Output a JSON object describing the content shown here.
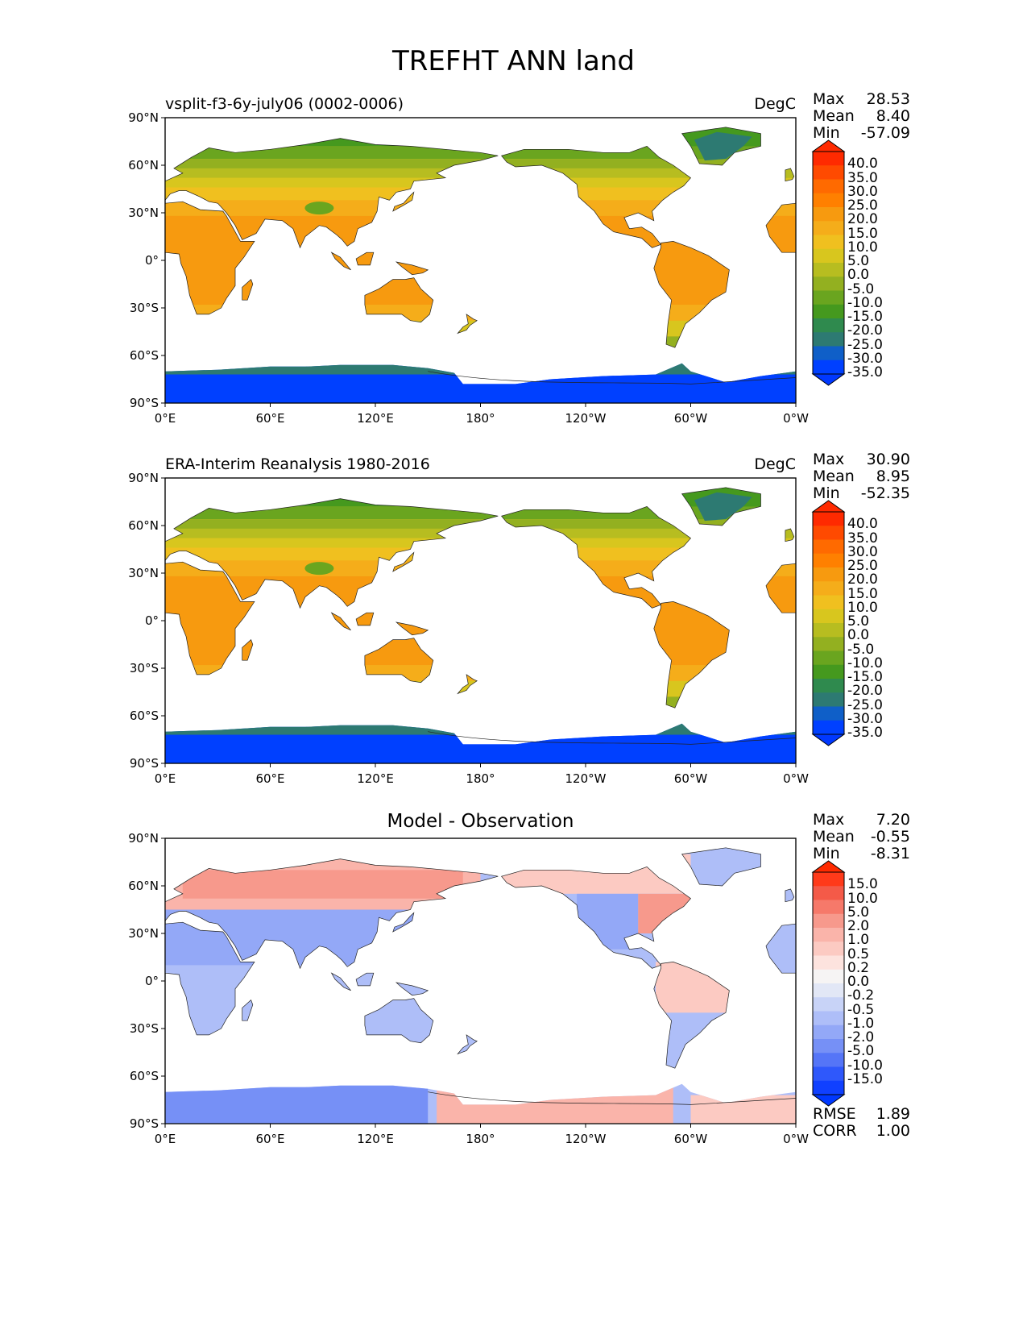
{
  "figure": {
    "title": "TREFHT ANN land"
  },
  "lat_ticks": [
    "90°N",
    "60°N",
    "30°N",
    "0°",
    "30°S",
    "60°S",
    "90°S"
  ],
  "lon_ticks": [
    "0°E",
    "60°E",
    "120°E",
    "180°",
    "120°W",
    "60°W",
    "0°W"
  ],
  "panels": [
    {
      "id": "test",
      "title": "vsplit-f3-6y-july06 (0002-0006)",
      "title_align": "left",
      "units": "DegC",
      "stats": {
        "max_label": "Max",
        "max": "28.53",
        "mean_label": "Mean",
        "mean": "8.40",
        "min_label": "Min",
        "min": "-57.09"
      },
      "colorbar": {
        "labels": [
          "40.0",
          "35.0",
          "30.0",
          "25.0",
          "20.0",
          "15.0",
          "10.0",
          "5.0",
          "0.0",
          "-5.0",
          "-10.0",
          "-15.0",
          "-20.0",
          "-25.0",
          "-30.0",
          "-35.0"
        ],
        "colors": [
          "#ff2a00",
          "#ff4a00",
          "#ff6a00",
          "#ff8000",
          "#f79a0f",
          "#f5ad1a",
          "#f0c01f",
          "#d8c61e",
          "#b7bd20",
          "#93b020",
          "#6aa51f",
          "#45991e",
          "#2f8a4e",
          "#2d7a72",
          "#0f5fc8",
          "#0040ff"
        ],
        "over_color": "#ff2a00",
        "under_color": "#0038ff"
      },
      "palette": "temp"
    },
    {
      "id": "ref",
      "title": "ERA-Interim Reanalysis 1980-2016",
      "title_align": "left",
      "units": "DegC",
      "stats": {
        "max_label": "Max",
        "max": "30.90",
        "mean_label": "Mean",
        "mean": "8.95",
        "min_label": "Min",
        "min": "-52.35"
      },
      "colorbar": {
        "labels": [
          "40.0",
          "35.0",
          "30.0",
          "25.0",
          "20.0",
          "15.0",
          "10.0",
          "5.0",
          "0.0",
          "-5.0",
          "-10.0",
          "-15.0",
          "-20.0",
          "-25.0",
          "-30.0",
          "-35.0"
        ],
        "colors": [
          "#ff2a00",
          "#ff4a00",
          "#ff6a00",
          "#ff8000",
          "#f79a0f",
          "#f5ad1a",
          "#f0c01f",
          "#d8c61e",
          "#b7bd20",
          "#93b020",
          "#6aa51f",
          "#45991e",
          "#2f8a4e",
          "#2d7a72",
          "#0f5fc8",
          "#0040ff"
        ],
        "over_color": "#ff2a00",
        "under_color": "#0038ff"
      },
      "palette": "temp"
    },
    {
      "id": "diff",
      "title": "Model - Observation",
      "title_align": "center",
      "units": "",
      "stats": {
        "max_label": "Max",
        "max": "7.20",
        "mean_label": "Mean",
        "mean": "-0.55",
        "min_label": "Min",
        "min": "-8.31"
      },
      "colorbar": {
        "labels": [
          "15.0",
          "10.0",
          "5.0",
          "2.0",
          "1.0",
          "0.5",
          "0.2",
          "0.0",
          "-0.2",
          "-0.5",
          "-1.0",
          "-2.0",
          "-5.0",
          "-10.0",
          "-15.0"
        ],
        "colors": [
          "#ff3a1a",
          "#f45a48",
          "#f6796a",
          "#f7998c",
          "#fab4aa",
          "#fccac2",
          "#fde3de",
          "#f6f4f4",
          "#e2e7f6",
          "#c8d3f7",
          "#aebef8",
          "#93a8f7",
          "#7690f6",
          "#5575f7",
          "#2f58fb",
          "#1040ff"
        ],
        "over_color": "#ff2a00",
        "under_color": "#0038ff"
      },
      "palette": "diff",
      "rmse_label": "RMSE",
      "rmse": "1.89",
      "corr_label": "CORR",
      "corr": "1.00"
    }
  ]
}
